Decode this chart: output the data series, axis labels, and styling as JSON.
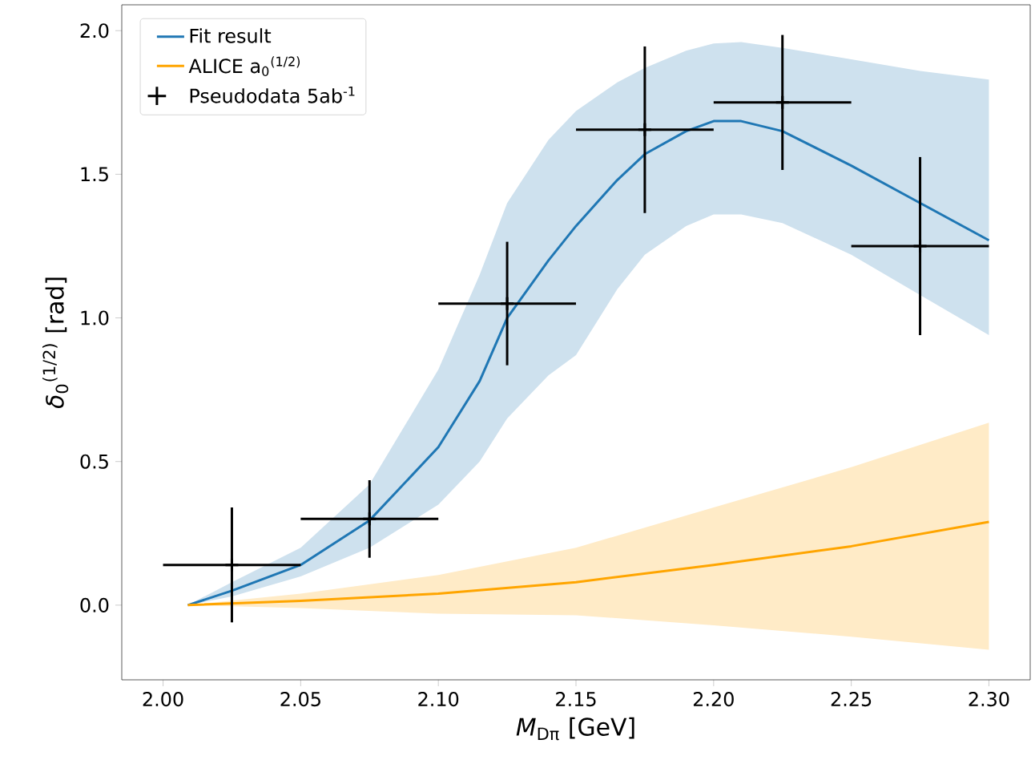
{
  "chart_data": {
    "type": "line",
    "xlabel": "*M*$_{Dπ}$ [GeV]",
    "ylabel": "*δ*$_{0}$$^{(1/2)}$ [rad]",
    "xlim": [
      1.985,
      2.315
    ],
    "ylim": [
      -0.26,
      2.09
    ],
    "xticks": [
      {
        "value": 2.0,
        "label": "2.00"
      },
      {
        "value": 2.05,
        "label": "2.05"
      },
      {
        "value": 2.1,
        "label": "2.10"
      },
      {
        "value": 2.15,
        "label": "2.15"
      },
      {
        "value": 2.2,
        "label": "2.20"
      },
      {
        "value": 2.25,
        "label": "2.25"
      },
      {
        "value": 2.3,
        "label": "2.30"
      }
    ],
    "yticks": [
      {
        "value": 0,
        "label": "0.0"
      },
      {
        "value": 0.5,
        "label": "0.5"
      },
      {
        "value": 1.0,
        "label": "1.0"
      },
      {
        "value": 1.5,
        "label": "1.5"
      },
      {
        "value": 2.0,
        "label": "2.0"
      }
    ],
    "legend": "top left",
    "series": [
      {
        "name": "Fit result",
        "color": "#1f77b4",
        "x": [
          2.009,
          2.025,
          2.05,
          2.075,
          2.1,
          2.115,
          2.125,
          2.14,
          2.15,
          2.165,
          2.175,
          2.19,
          2.2,
          2.21,
          2.225,
          2.25,
          2.275,
          2.3
        ],
        "values": [
          0,
          0.05,
          0.14,
          0.295,
          0.55,
          0.78,
          1.0,
          1.2,
          1.32,
          1.48,
          1.57,
          1.65,
          1.685,
          1.685,
          1.65,
          1.53,
          1.4,
          1.27
        ],
        "lower": [
          0,
          0.03,
          0.1,
          0.2,
          0.35,
          0.5,
          0.65,
          0.8,
          0.87,
          1.1,
          1.22,
          1.32,
          1.36,
          1.36,
          1.33,
          1.22,
          1.08,
          0.94
        ],
        "upper": [
          0,
          0.08,
          0.2,
          0.42,
          0.82,
          1.15,
          1.4,
          1.62,
          1.72,
          1.82,
          1.87,
          1.93,
          1.955,
          1.96,
          1.94,
          1.9,
          1.86,
          1.83
        ]
      },
      {
        "name": "ALICE a$_{0}$$^{(1/2)}$",
        "color": "#ffa500",
        "x": [
          2.009,
          2.05,
          2.1,
          2.15,
          2.2,
          2.25,
          2.3
        ],
        "values": [
          0,
          0.015,
          0.04,
          0.08,
          0.14,
          0.205,
          0.29
        ],
        "lower": [
          0,
          -0.01,
          -0.03,
          -0.035,
          -0.07,
          -0.11,
          -0.155
        ],
        "upper": [
          0,
          0.04,
          0.105,
          0.2,
          0.34,
          0.48,
          0.635
        ]
      },
      {
        "name": "Pseudodata 5ab$^{-1}$",
        "type": "scatter",
        "color": "#000000",
        "marker": "cross",
        "x": [
          2.025,
          2.075,
          2.125,
          2.175,
          2.225,
          2.275
        ],
        "values": [
          0.14,
          0.3,
          1.05,
          1.655,
          1.75,
          1.25
        ],
        "errors": [
          0.2,
          0.135,
          0.215,
          0.29,
          0.235,
          0.31
        ],
        "xerrors": [
          0.025,
          0.025,
          0.025,
          0.025,
          0.025,
          0.025
        ]
      }
    ]
  }
}
